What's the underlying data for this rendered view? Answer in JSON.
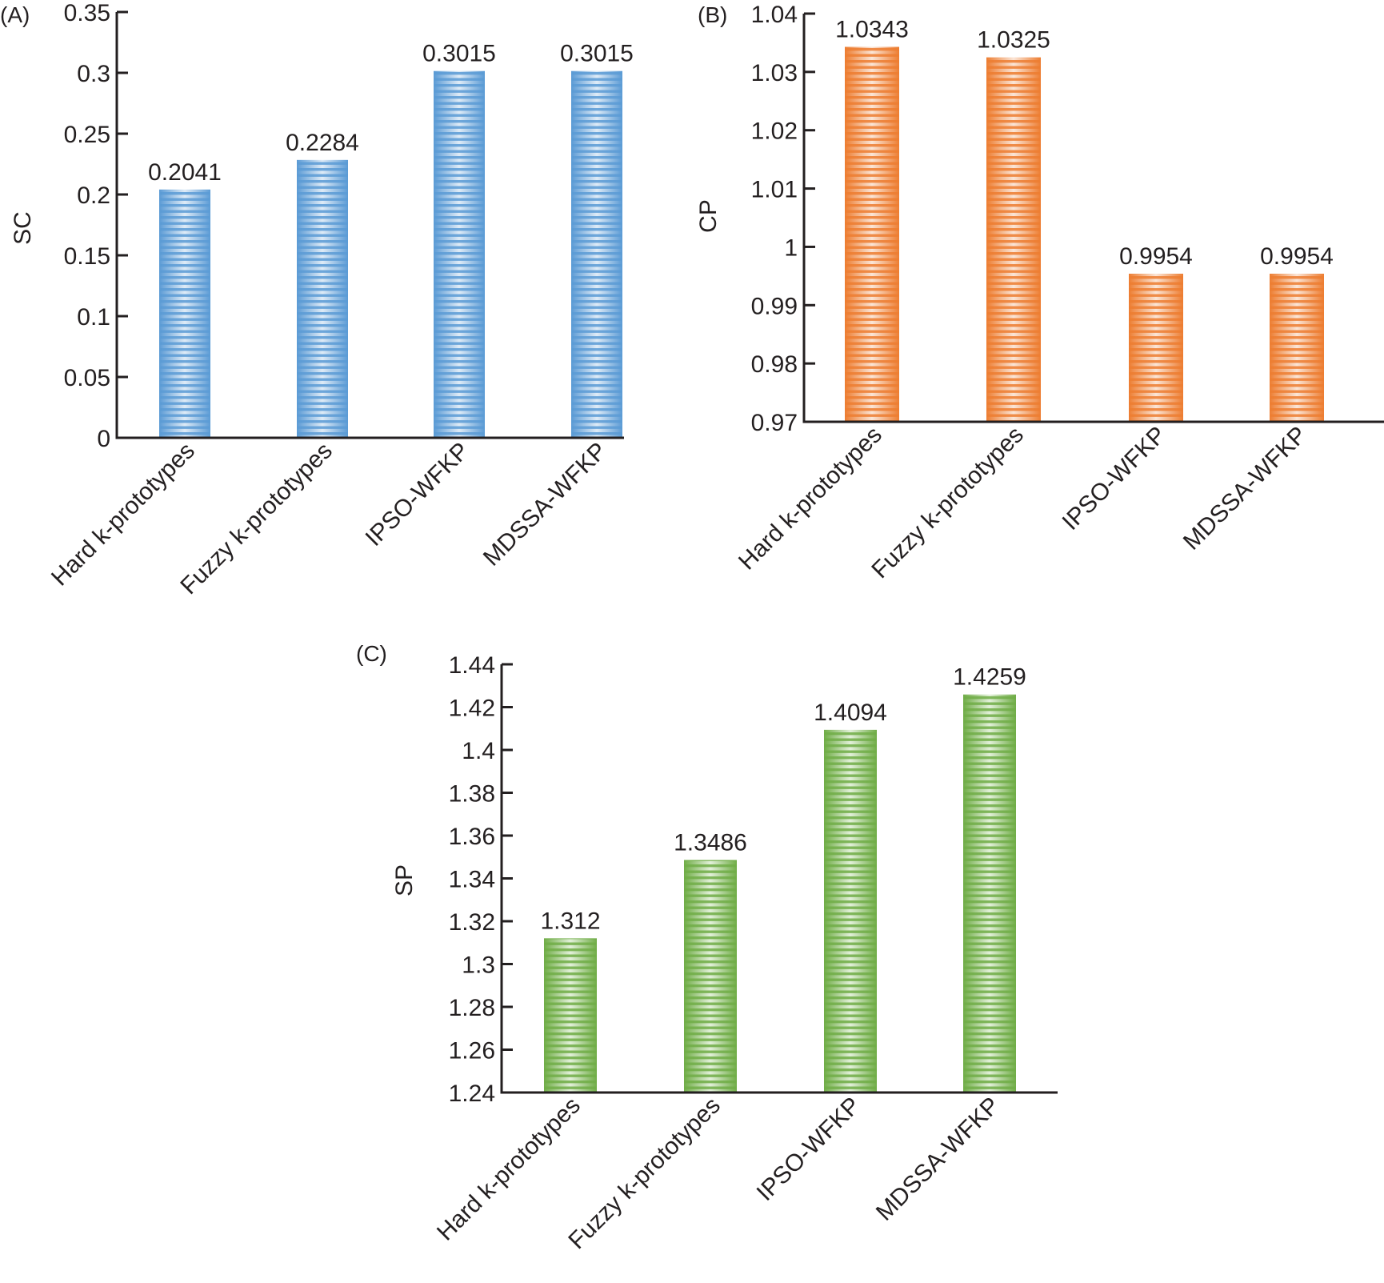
{
  "chart_data": [
    {
      "panel": "(A)",
      "type": "bar",
      "categories": [
        "Hard k-prototypes",
        "Fuzzy k-prototypes",
        "IPSO-WFKP",
        "MDSSA-WFKP"
      ],
      "values": [
        0.2041,
        0.2284,
        0.3015,
        0.3015
      ],
      "value_labels": [
        "0.2041",
        "0.2284",
        "0.3015",
        "0.3015"
      ],
      "title": "",
      "xlabel": "",
      "ylabel": "SC",
      "ylim": [
        0,
        0.35
      ],
      "yticks": [
        "0",
        "0.05",
        "0.1",
        "0.15",
        "0.2",
        "0.25",
        "0.3",
        "0.35"
      ],
      "ytick_values": [
        0,
        0.05,
        0.1,
        0.15,
        0.2,
        0.25,
        0.3,
        0.35
      ],
      "grid": false,
      "color": "#5b9bd5",
      "color_light": "#deebf7"
    },
    {
      "panel": "(B)",
      "type": "bar",
      "categories": [
        "Hard k-prototypes",
        "Fuzzy k-prototypes",
        "IPSO-WFKP",
        "MDSSA-WFKP"
      ],
      "values": [
        1.0343,
        1.0325,
        0.9954,
        0.9954
      ],
      "value_labels": [
        "1.0343",
        "1.0325",
        "0.9954",
        "0.9954"
      ],
      "title": "",
      "xlabel": "",
      "ylabel": "CP",
      "ylim": [
        0.97,
        1.04
      ],
      "yticks": [
        "0.97",
        "0.98",
        "0.99",
        "1",
        "1.01",
        "1.02",
        "1.03",
        "1.04"
      ],
      "ytick_values": [
        0.97,
        0.98,
        0.99,
        1.0,
        1.01,
        1.02,
        1.03,
        1.04
      ],
      "grid": false,
      "color": "#ed7d31",
      "color_light": "#fbe5d6"
    },
    {
      "panel": "(C)",
      "type": "bar",
      "categories": [
        "Hard k-prototypes",
        "Fuzzy k-prototypes",
        "IPSO-WFKP",
        "MDSSA-WFKP"
      ],
      "values": [
        1.312,
        1.3486,
        1.4094,
        1.4259
      ],
      "value_labels": [
        "1.312",
        "1.3486",
        "1.4094",
        "1.4259"
      ],
      "title": "",
      "xlabel": "",
      "ylabel": "SP",
      "ylim": [
        1.24,
        1.44
      ],
      "yticks": [
        "1.24",
        "1.26",
        "1.28",
        "1.3",
        "1.32",
        "1.34",
        "1.36",
        "1.38",
        "1.4",
        "1.42",
        "1.44"
      ],
      "ytick_values": [
        1.24,
        1.26,
        1.28,
        1.3,
        1.32,
        1.34,
        1.36,
        1.38,
        1.4,
        1.42,
        1.44
      ],
      "grid": false,
      "color": "#70ad47",
      "color_light": "#e2f0d9"
    }
  ]
}
